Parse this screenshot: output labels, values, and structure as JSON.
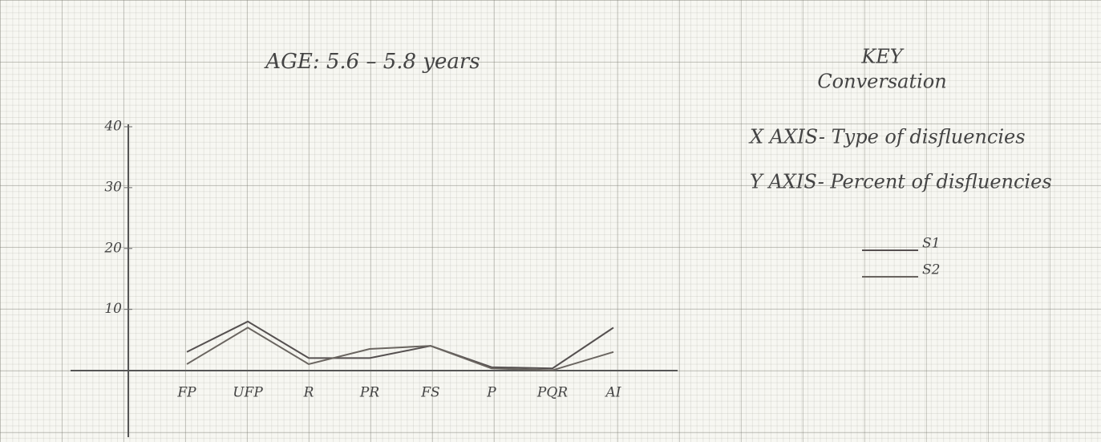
{
  "chart_data": {
    "type": "line",
    "title": "AGE: 5.6 – 5.8 years",
    "annotations": [
      "KEY",
      "Conversation",
      "X AXIS- Type of disfluencies",
      "Y AXIS- Percent of disfluencies"
    ],
    "categories": [
      "FP",
      "UFP",
      "R",
      "PR",
      "FS",
      "P",
      "PQR",
      "AI"
    ],
    "series": [
      {
        "name": "S1",
        "color": "#555050",
        "values": [
          3,
          8,
          2,
          2,
          4,
          0.5,
          0.3,
          7
        ]
      },
      {
        "name": "S2",
        "color": "#6a6560",
        "values": [
          1,
          7,
          1,
          3.5,
          4,
          0.3,
          0,
          3
        ]
      }
    ],
    "ylim": [
      -11,
      40
    ],
    "yticks": [
      10,
      20,
      30,
      40
    ]
  }
}
